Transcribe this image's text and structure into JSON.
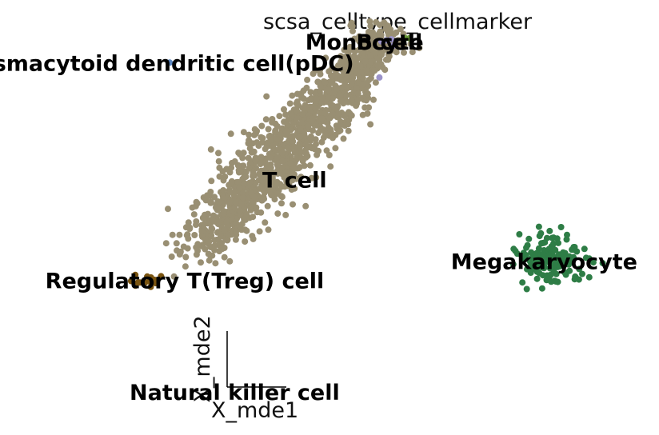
{
  "chart_data": {
    "type": "scatter",
    "title": "scsa_celltype_cellmarker",
    "xlabel": "X_mde1",
    "ylabel": "X_mde2",
    "grid": false,
    "legend": "on data",
    "xlim": [
      -3.2,
      3.4
    ],
    "ylim": [
      -2.45,
      1.65
    ],
    "series": [
      {
        "name": "T cell",
        "color": "#998f73",
        "point_count": 1250
      },
      {
        "name": "Megakaryocyte",
        "color": "#2e7d46",
        "point_count": 150
      },
      {
        "name": "Regulatory T(Treg) cell",
        "color": "#7a5410",
        "point_count": 14
      },
      {
        "name": "Monocyte",
        "color": "#9b93c9",
        "point_count": 5
      },
      {
        "name": "B cell",
        "color": "#6a9a3a",
        "point_count": 2
      },
      {
        "name": "Plasmacytoid dendritic cell(pDC)",
        "color": "#5b86c0",
        "point_count": 1
      },
      {
        "name": "Natural killer cell",
        "color": "#3a3a3a",
        "point_count": 0
      }
    ],
    "labels": [
      {
        "text": "Monocyte",
        "x": 0.45,
        "y": 1.25
      },
      {
        "text": "B cell",
        "x": 0.7,
        "y": 1.25
      },
      {
        "text": "Plasmacytoid dendritic cell(pDC)",
        "x": -1.65,
        "y": 1.05
      },
      {
        "text": "T cell",
        "x": -0.25,
        "y": -0.05
      },
      {
        "text": "Megakaryocyte",
        "x": 2.25,
        "y": -0.82
      },
      {
        "text": "Regulatory T(Treg) cell",
        "x": -1.35,
        "y": -1.0
      },
      {
        "text": "Natural killer cell",
        "x": -0.85,
        "y": -2.05
      }
    ]
  }
}
